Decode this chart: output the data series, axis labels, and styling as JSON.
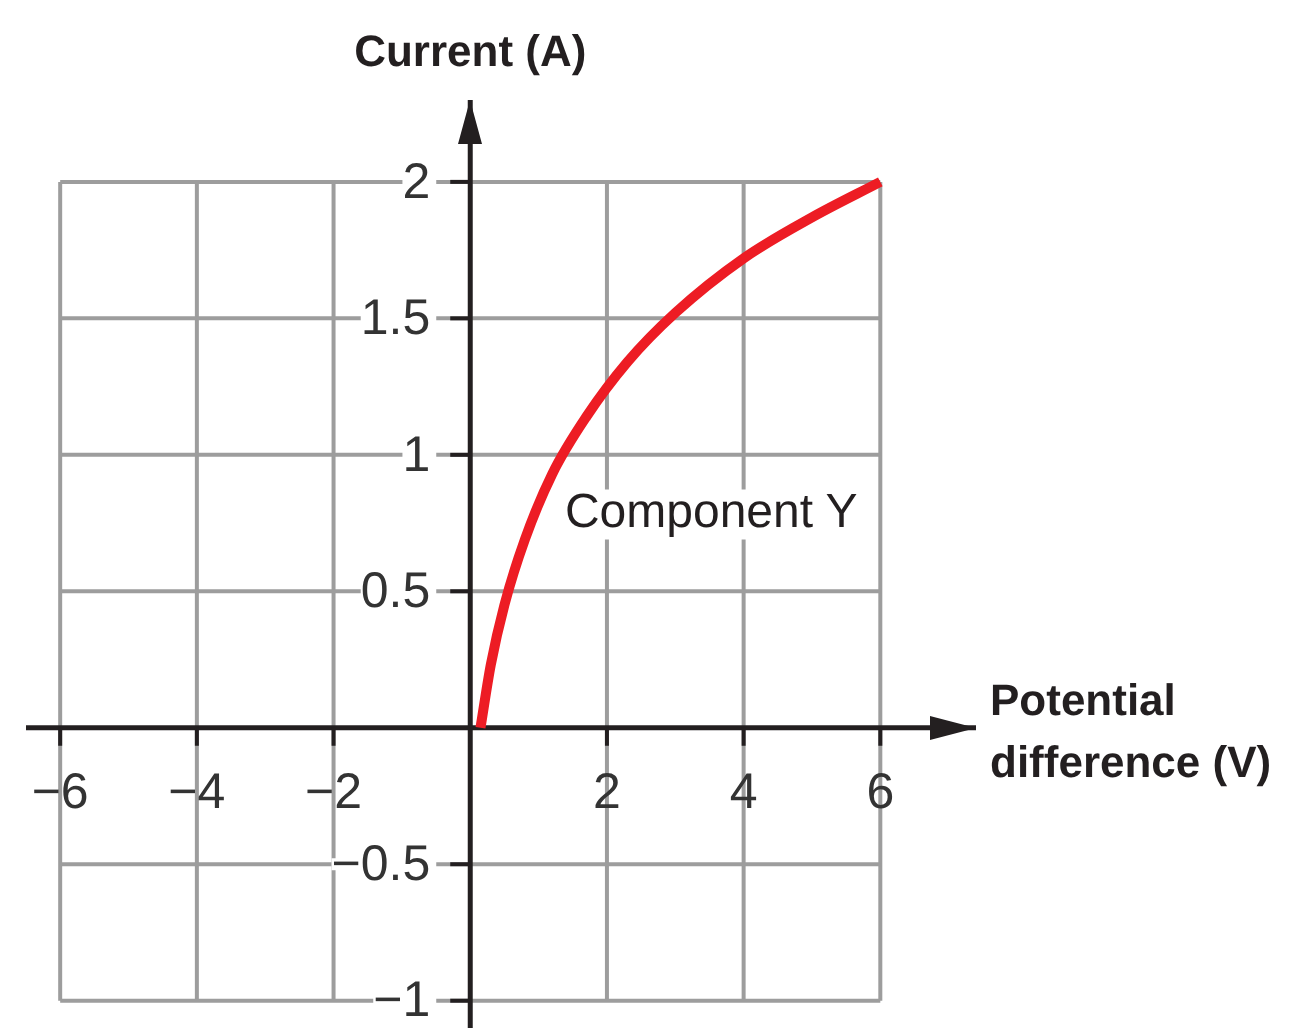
{
  "chart_data": {
    "type": "line",
    "xlabel": "Potential difference (V)",
    "ylabel": "Current (A)",
    "xlim": [
      -6.5,
      7.4
    ],
    "ylim": [
      -1.1,
      2.3
    ],
    "xticks": [
      -6,
      -4,
      -2,
      2,
      4,
      6
    ],
    "yticks": [
      -1,
      -0.5,
      0.5,
      1,
      1.5,
      2
    ],
    "grid": true,
    "marker": "none",
    "series": [
      {
        "name": "Component Y",
        "color": "#ed1c24",
        "x": [
          0.15,
          0.3,
          0.5,
          0.8,
          1.2,
          1.7,
          2.3,
          3,
          4,
          5,
          6
        ],
        "values": [
          0,
          0.23,
          0.45,
          0.69,
          0.93,
          1.14,
          1.34,
          1.52,
          1.72,
          1.87,
          2
        ]
      }
    ]
  }
}
